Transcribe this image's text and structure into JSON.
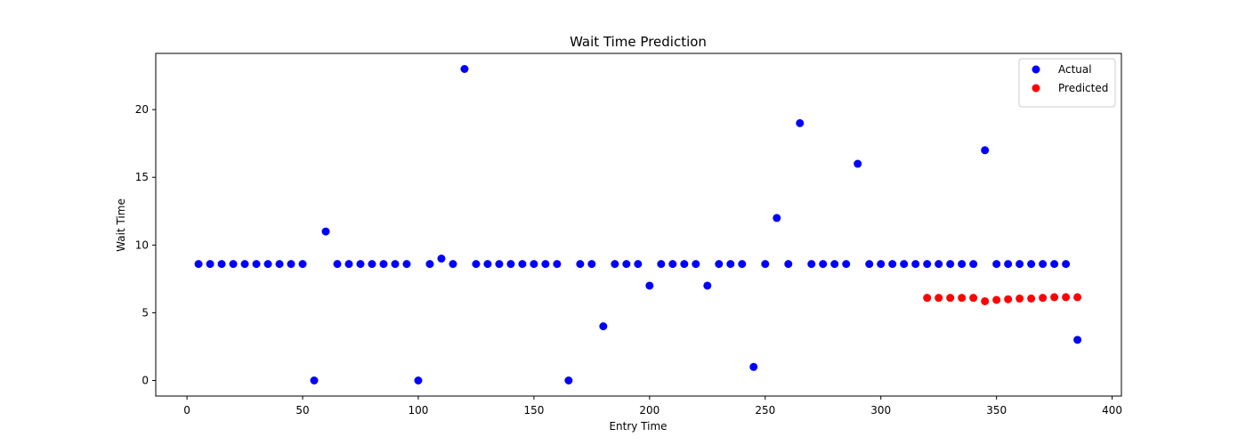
{
  "chart_data": {
    "type": "scatter",
    "title": "Wait Time Prediction",
    "xlabel": "Entry Time",
    "ylabel": "Wait Time",
    "xlim": [
      -13.5,
      404
    ],
    "ylim": [
      -1.15,
      24.15
    ],
    "xticks": [
      0,
      50,
      100,
      150,
      200,
      250,
      300,
      350,
      400
    ],
    "yticks": [
      0,
      5,
      10,
      15,
      20
    ],
    "grid": false,
    "legend_position": "top-right",
    "series": [
      {
        "name": "Actual",
        "color": "#0000ff",
        "x": [
          5,
          10,
          15,
          20,
          25,
          30,
          35,
          40,
          45,
          50,
          55,
          60,
          65,
          70,
          75,
          80,
          85,
          90,
          95,
          100,
          105,
          110,
          115,
          120,
          125,
          130,
          135,
          140,
          145,
          150,
          155,
          160,
          165,
          170,
          175,
          180,
          185,
          190,
          195,
          200,
          205,
          210,
          215,
          220,
          225,
          230,
          235,
          240,
          245,
          250,
          255,
          260,
          265,
          270,
          275,
          280,
          285,
          290,
          295,
          300,
          305,
          310,
          315,
          320,
          325,
          330,
          335,
          340,
          345,
          350,
          355,
          360,
          365,
          370,
          375,
          380,
          385
        ],
        "y": [
          8.6,
          8.6,
          8.6,
          8.6,
          8.6,
          8.6,
          8.6,
          8.6,
          8.6,
          8.6,
          0,
          11,
          8.6,
          8.6,
          8.6,
          8.6,
          8.6,
          8.6,
          8.6,
          0,
          8.6,
          9,
          8.6,
          23,
          8.6,
          8.6,
          8.6,
          8.6,
          8.6,
          8.6,
          8.6,
          8.6,
          0,
          8.6,
          8.6,
          4,
          8.6,
          8.6,
          8.6,
          7,
          8.6,
          8.6,
          8.6,
          8.6,
          7,
          8.6,
          8.6,
          8.6,
          1,
          8.6,
          12,
          8.6,
          19,
          8.6,
          8.6,
          8.6,
          8.6,
          16,
          8.6,
          8.6,
          8.6,
          8.6,
          8.6,
          8.6,
          8.6,
          8.6,
          8.6,
          8.6,
          17,
          8.6,
          8.6,
          8.6,
          8.6,
          8.6,
          8.6,
          8.6,
          3
        ]
      },
      {
        "name": "Predicted",
        "color": "#ff0000",
        "x": [
          320,
          325,
          330,
          335,
          340,
          345,
          350,
          355,
          360,
          365,
          370,
          375,
          380,
          385
        ],
        "y": [
          6.1,
          6.1,
          6.1,
          6.1,
          6.1,
          5.85,
          5.95,
          6.0,
          6.05,
          6.05,
          6.1,
          6.15,
          6.15,
          6.15
        ]
      }
    ]
  }
}
